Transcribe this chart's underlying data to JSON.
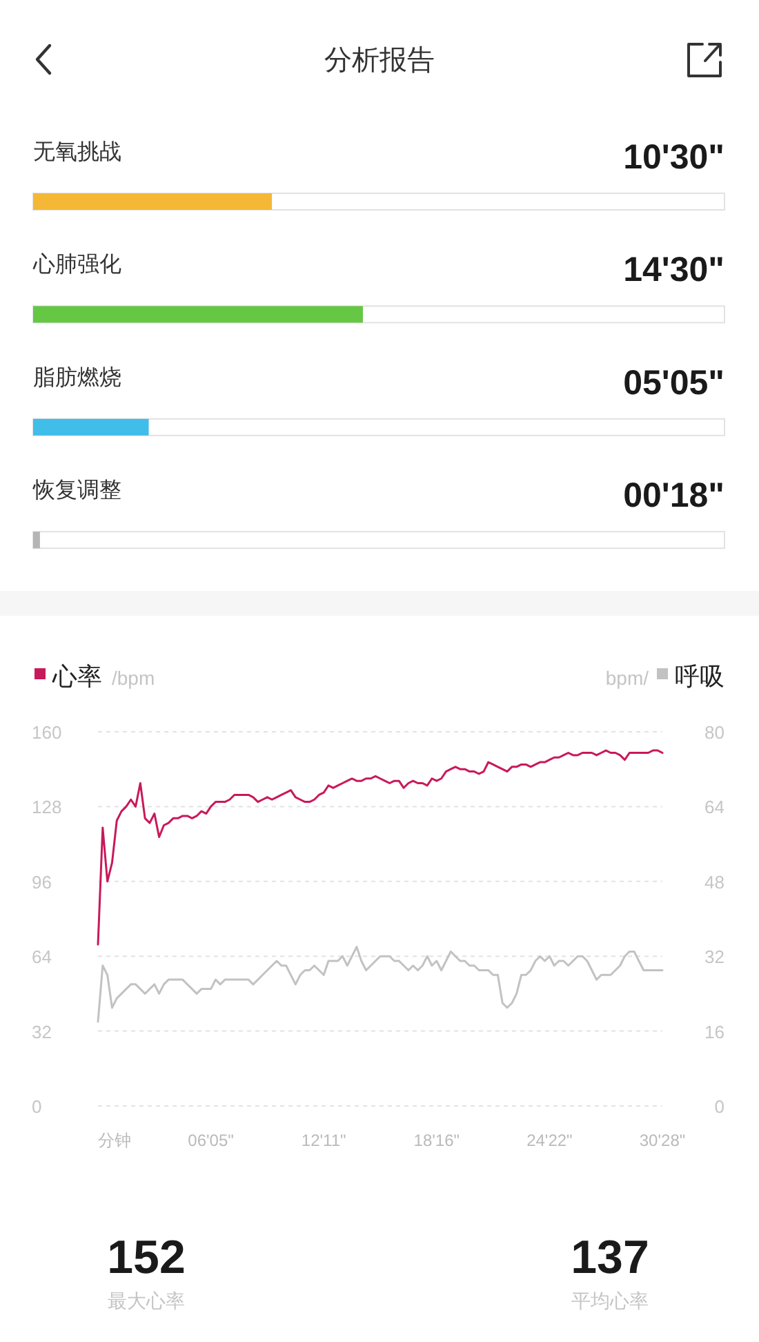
{
  "chart_data": [
    {
      "type": "bar",
      "title": "分析报告",
      "orientation": "horizontal",
      "categories": [
        "无氧挑战",
        "心肺强化",
        "脂肪燃烧",
        "恢复调整"
      ],
      "values": [
        10.5,
        14.5,
        5.083,
        0.3
      ],
      "colors": [
        "#f5b836",
        "#65c744",
        "#40bde8",
        "#b5b5b5"
      ],
      "value_labels": [
        "10'30\"",
        "14'30\"",
        "05'05\"",
        "00'18\""
      ],
      "xlim": [
        0,
        30.4
      ],
      "tick_labels": "y"
    },
    {
      "type": "line",
      "xlabel": "分钟",
      "ylabel": "/bpm",
      "y2label": "bpm/",
      "categories": [
        null,
        null,
        null,
        null,
        null,
        null,
        null,
        null,
        null,
        null,
        null,
        null,
        null,
        null,
        null,
        null,
        null,
        null,
        null,
        null,
        null,
        null,
        null,
        null,
        "06'05\"",
        null,
        null,
        null,
        null,
        null,
        null,
        null,
        null,
        null,
        null,
        null,
        null,
        null,
        null,
        null,
        null,
        null,
        null,
        null,
        null,
        null,
        null,
        null,
        "12'11\"",
        null,
        null,
        null,
        null,
        null,
        null,
        null,
        null,
        null,
        null,
        null,
        null,
        null,
        null,
        null,
        null,
        null,
        null,
        null,
        null,
        null,
        null,
        null,
        "18'16\"",
        null,
        null,
        null,
        null,
        null,
        null,
        null,
        null,
        null,
        null,
        null,
        null,
        null,
        null,
        null,
        null,
        null,
        null,
        null,
        null,
        null,
        null,
        null,
        "24'22\"",
        null,
        null,
        null,
        null,
        null,
        null,
        null,
        null,
        null,
        null,
        null,
        null,
        null,
        null,
        null,
        null,
        null,
        null,
        null,
        null,
        null,
        null,
        null,
        "30'28\""
      ],
      "ylim": [
        0,
        160
      ],
      "yticks": [
        0,
        32,
        64,
        96,
        128,
        160
      ],
      "y2lim": [
        0,
        80
      ],
      "y2ticks": [
        0,
        16,
        32,
        48,
        64,
        80
      ],
      "grid": "y",
      "legend": "top",
      "series": [
        {
          "name": "心率",
          "color": "#c8195a",
          "values": [
            69,
            119,
            96,
            104,
            122,
            126,
            128,
            131,
            128,
            138,
            123,
            121,
            125,
            115,
            120,
            121,
            123,
            123,
            124,
            124,
            123,
            124,
            126,
            125,
            128,
            130,
            130,
            130,
            131,
            133,
            133,
            133,
            133,
            132,
            130,
            131,
            132,
            131,
            132,
            133,
            134,
            135,
            132,
            131,
            130,
            130,
            131,
            133,
            134,
            137,
            136,
            137,
            138,
            139,
            140,
            139,
            139,
            140,
            140,
            141,
            140,
            139,
            138,
            139,
            139,
            136,
            138,
            139,
            138,
            138,
            137,
            140,
            139,
            140,
            143,
            144,
            145,
            144,
            144,
            143,
            143,
            142,
            143,
            147,
            146,
            145,
            144,
            143,
            145,
            145,
            146,
            146,
            145,
            146,
            147,
            147,
            148,
            149,
            149,
            150,
            151,
            150,
            150,
            151,
            151,
            151,
            150,
            151,
            152,
            151,
            151,
            150,
            148,
            151,
            151,
            151,
            151,
            151,
            152,
            152,
            151
          ]
        },
        {
          "name": "呼吸",
          "color": "#c2c2c2",
          "axis": "y2",
          "values": [
            18,
            30,
            28,
            21,
            23,
            24,
            25,
            26,
            26,
            25,
            24,
            25,
            26,
            24,
            26,
            27,
            27,
            27,
            27,
            26,
            25,
            24,
            25,
            25,
            25,
            27,
            26,
            27,
            27,
            27,
            27,
            27,
            27,
            26,
            27,
            28,
            29,
            30,
            31,
            30,
            30,
            28,
            26,
            28,
            29,
            29,
            30,
            29,
            28,
            31,
            31,
            31,
            32,
            30,
            32,
            34,
            31,
            29,
            30,
            31,
            32,
            32,
            32,
            31,
            31,
            30,
            29,
            30,
            29,
            30,
            32,
            30,
            31,
            29,
            31,
            33,
            32,
            31,
            31,
            30,
            30,
            29,
            29,
            29,
            28,
            28,
            22,
            21,
            22,
            24,
            28,
            28,
            29,
            31,
            32,
            31,
            32,
            30,
            31,
            31,
            30,
            31,
            32,
            32,
            31,
            29,
            27,
            28,
            28,
            28,
            29,
            30,
            32,
            33,
            33,
            31,
            29,
            29,
            29,
            29,
            29
          ]
        }
      ]
    },
    {
      "type": "other",
      "annotations": [
        "152",
        "最大心率",
        "137",
        "平均心率"
      ]
    }
  ]
}
